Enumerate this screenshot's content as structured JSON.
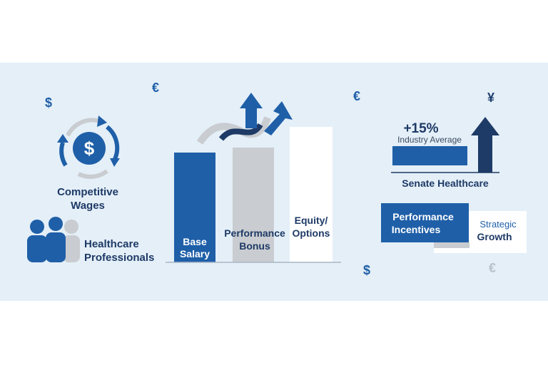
{
  "currency_symbols": [
    "$",
    "€",
    "€",
    "¥",
    "$",
    "€"
  ],
  "wages": {
    "label": [
      "Competitive",
      "Wages"
    ],
    "icon": "$"
  },
  "professionals": {
    "label": [
      "Healthcare",
      "Professionals"
    ]
  },
  "pay_bars": [
    {
      "label": [
        "Base",
        "Salary"
      ]
    },
    {
      "label": [
        "Performance",
        "Bonus"
      ]
    },
    {
      "label": [
        "Equity/",
        "Options"
      ]
    }
  ],
  "comparison": {
    "change": "+15%",
    "benchmark": "Industry Average",
    "name": "Senate Healthcare"
  },
  "boxes": [
    {
      "label": [
        "Performance",
        "Incentives"
      ]
    },
    {
      "label": [
        "Strategic",
        "Growth"
      ]
    }
  ]
}
